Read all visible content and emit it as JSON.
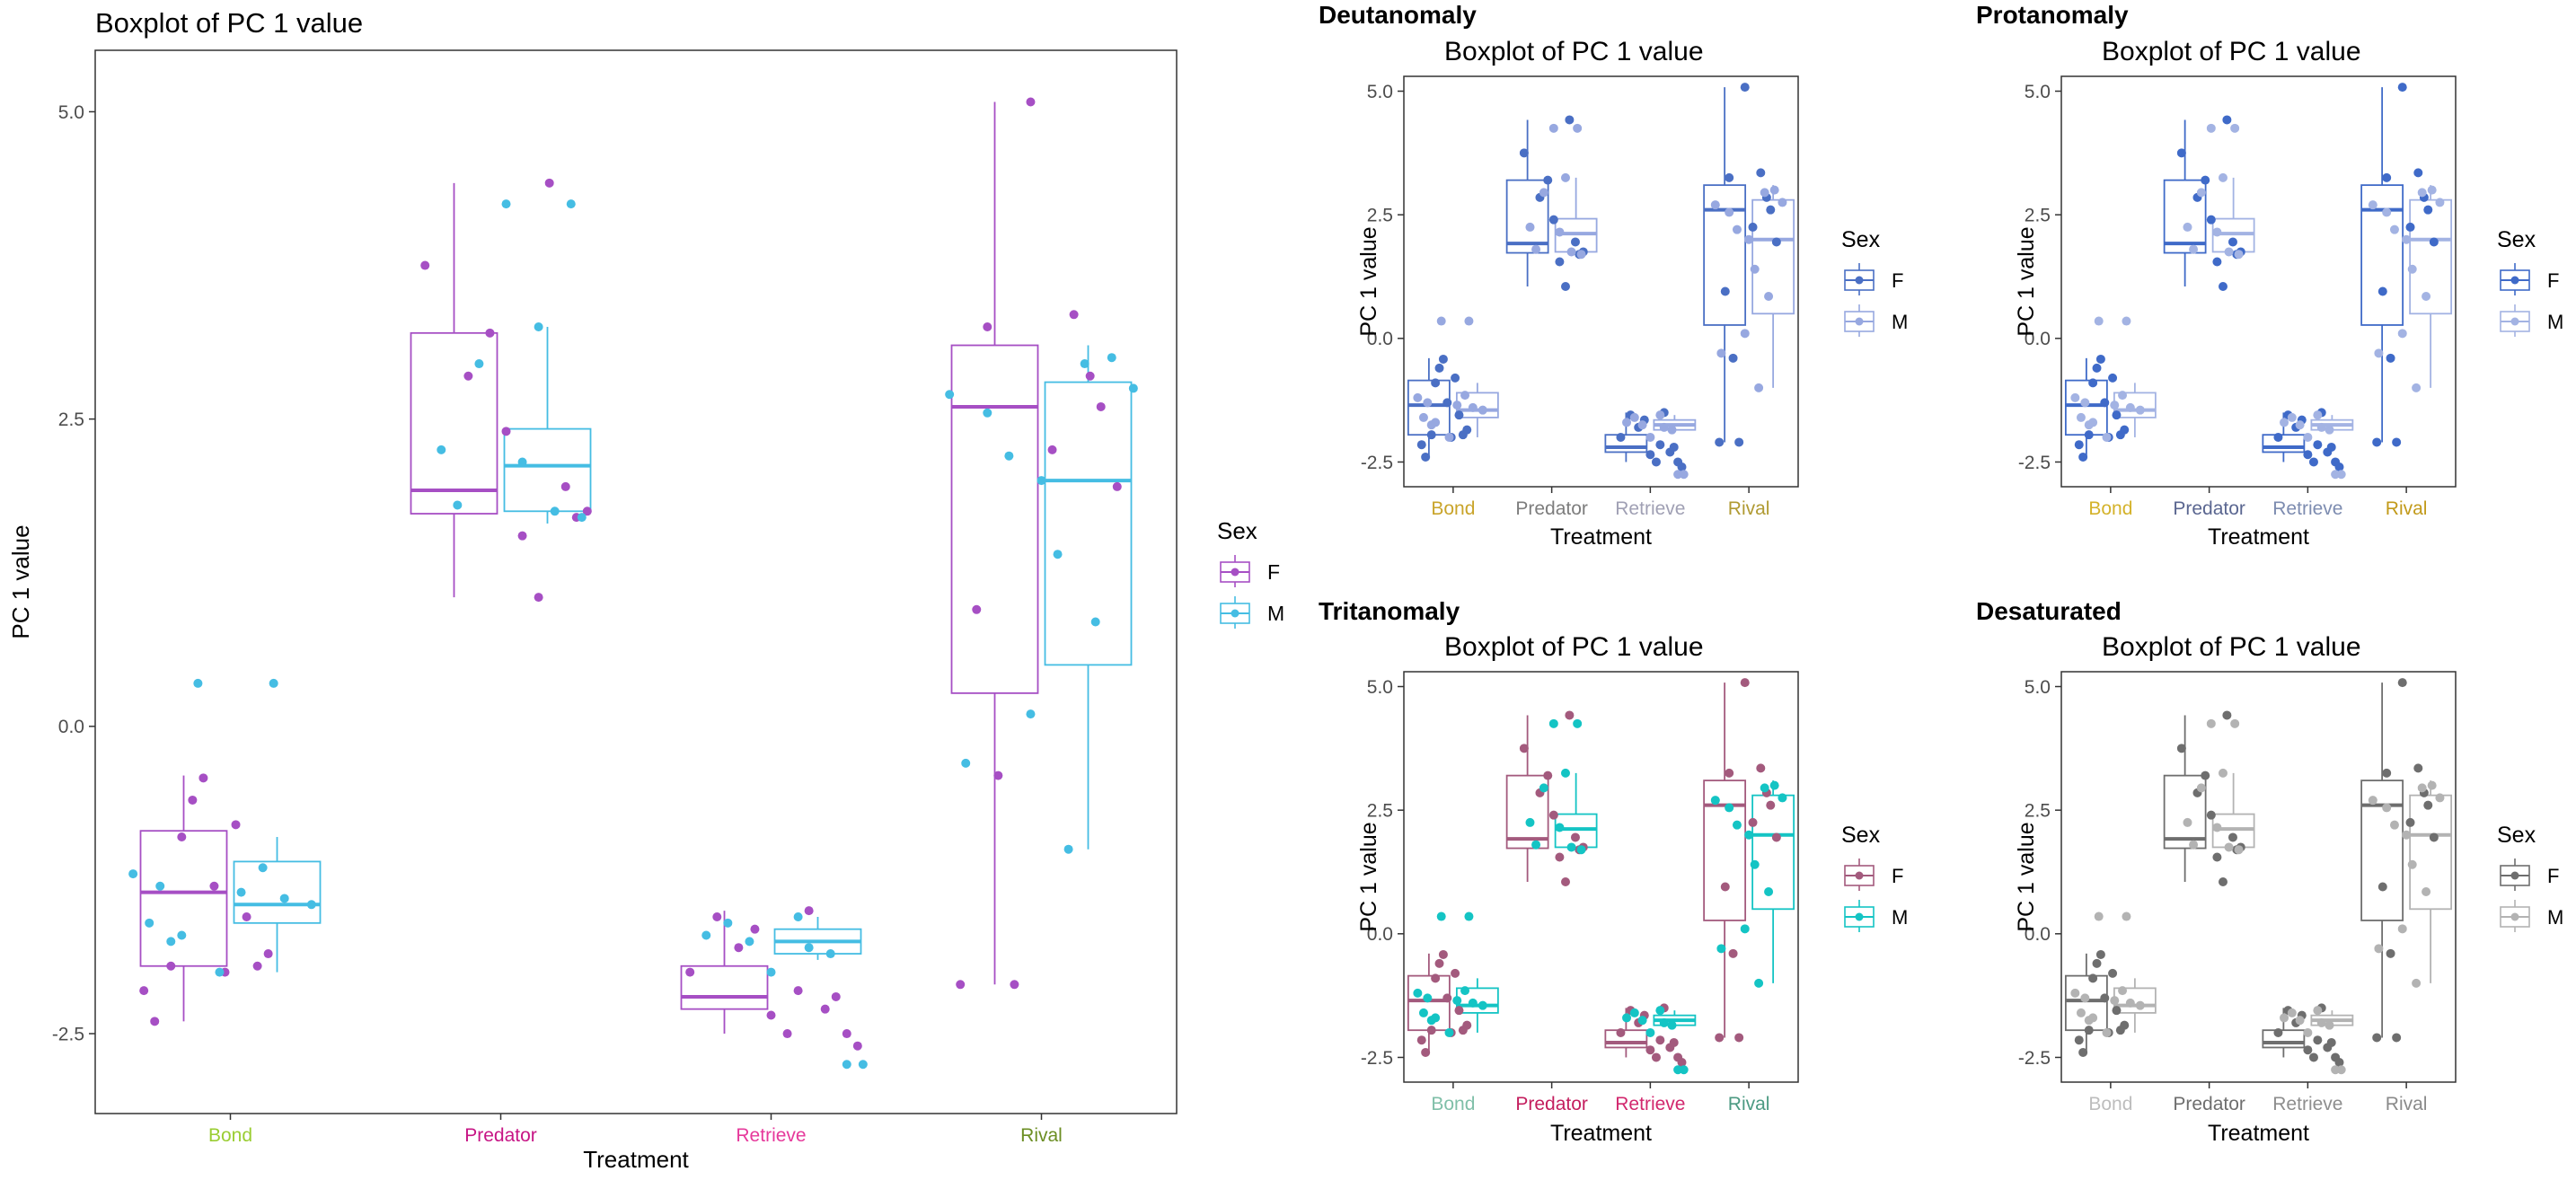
{
  "chart_data": [
    {
      "id": "main",
      "type": "boxplot",
      "panel_label": "",
      "title": "Boxplot of PC 1 value",
      "xlabel": "Treatment",
      "ylabel": "PC 1 value",
      "ylim": [
        -3.15,
        5.5
      ],
      "yticks": [
        -2.5,
        0.0,
        2.5,
        5.0
      ],
      "ytick_labels": [
        "-2.5",
        "0.0",
        "2.5",
        "5.0"
      ],
      "categories": [
        "Bond",
        "Predator",
        "Retrieve",
        "Rival"
      ],
      "category_colors": [
        "#9acd32",
        "#c71585",
        "#e6399b",
        "#6b8e23"
      ],
      "legend": {
        "title": "Sex",
        "placement": "right",
        "labels": [
          "F",
          "M"
        ]
      },
      "series": [
        {
          "name": "F",
          "color": "#a64fc4",
          "points_color": "#a64fc4"
        },
        {
          "name": "M",
          "color": "#45bde3",
          "points_color": "#45bde3"
        }
      ]
    },
    {
      "id": "deutan",
      "type": "boxplot",
      "panel_label": "Deutanomaly",
      "title": "Boxplot of PC 1 value",
      "xlabel": "Treatment",
      "ylabel": "PC 1 value",
      "ylim": [
        -3.0,
        5.3
      ],
      "yticks": [
        -2.5,
        0.0,
        2.5,
        5.0
      ],
      "ytick_labels": [
        "-2.5",
        "0.0",
        "2.5",
        "5.0"
      ],
      "categories": [
        "Bond",
        "Predator",
        "Retrieve",
        "Rival"
      ],
      "category_colors": [
        "#c9a42a",
        "#7d7d7d",
        "#a0a0b4",
        "#b09a32"
      ],
      "legend": {
        "title": "Sex",
        "placement": "right",
        "labels": [
          "F",
          "M"
        ]
      },
      "series": [
        {
          "name": "F",
          "color": "#4a6fc4",
          "points_color": "#4a6fc4"
        },
        {
          "name": "M",
          "color": "#97a8e0",
          "points_color": "#97a8e0"
        }
      ]
    },
    {
      "id": "protan",
      "type": "boxplot",
      "panel_label": "Protanomaly",
      "title": "Boxplot of PC 1 value",
      "xlabel": "Treatment",
      "ylabel": "PC 1 value",
      "ylim": [
        -3.0,
        5.3
      ],
      "yticks": [
        -2.5,
        0.0,
        2.5,
        5.0
      ],
      "ytick_labels": [
        "-2.5",
        "0.0",
        "2.5",
        "5.0"
      ],
      "categories": [
        "Bond",
        "Predator",
        "Retrieve",
        "Rival"
      ],
      "category_colors": [
        "#d4b22a",
        "#5a6690",
        "#7d8cb0",
        "#c29a1a"
      ],
      "legend": {
        "title": "Sex",
        "placement": "right",
        "labels": [
          "F",
          "M"
        ]
      },
      "series": [
        {
          "name": "F",
          "color": "#3f6ac8",
          "points_color": "#3f6ac8"
        },
        {
          "name": "M",
          "color": "#a3b3e3",
          "points_color": "#a3b3e3"
        }
      ]
    },
    {
      "id": "tritan",
      "type": "boxplot",
      "panel_label": "Tritanomaly",
      "title": "Boxplot of PC 1 value",
      "xlabel": "Treatment",
      "ylabel": "PC 1 value",
      "ylim": [
        -3.0,
        5.3
      ],
      "yticks": [
        -2.5,
        0.0,
        2.5,
        5.0
      ],
      "ytick_labels": [
        "-2.5",
        "0.0",
        "2.5",
        "5.0"
      ],
      "categories": [
        "Bond",
        "Predator",
        "Retrieve",
        "Rival"
      ],
      "category_colors": [
        "#7fbfa8",
        "#c41e5e",
        "#d2286e",
        "#4c9a82"
      ],
      "legend": {
        "title": "Sex",
        "placement": "right",
        "labels": [
          "F",
          "M"
        ]
      },
      "series": [
        {
          "name": "F",
          "color": "#a35a7d",
          "points_color": "#a35a7d"
        },
        {
          "name": "M",
          "color": "#14c4c4",
          "points_color": "#14c4c4"
        }
      ]
    },
    {
      "id": "desat",
      "type": "boxplot",
      "panel_label": "Desaturated",
      "title": "Boxplot of PC 1 value",
      "xlabel": "Treatment",
      "ylabel": "PC 1 value",
      "ylim": [
        -3.0,
        5.3
      ],
      "yticks": [
        -2.5,
        0.0,
        2.5,
        5.0
      ],
      "ytick_labels": [
        "-2.5",
        "0.0",
        "2.5",
        "5.0"
      ],
      "categories": [
        "Bond",
        "Predator",
        "Retrieve",
        "Rival"
      ],
      "category_colors": [
        "#bdbdbd",
        "#6e6e6e",
        "#8e8e8e",
        "#8a8a8a"
      ],
      "legend": {
        "title": "Sex",
        "placement": "right",
        "labels": [
          "F",
          "M"
        ]
      },
      "series": [
        {
          "name": "F",
          "color": "#6e6e6e",
          "points_color": "#6e6e6e"
        },
        {
          "name": "M",
          "color": "#b3b3b3",
          "points_color": "#b3b3b3"
        }
      ]
    }
  ],
  "box_stats": {
    "Bond": {
      "F": {
        "min": -2.4,
        "q1": -1.95,
        "median": -1.35,
        "q3": -0.85,
        "max": -0.4
      },
      "M": {
        "min": -2.0,
        "q1": -1.6,
        "median": -1.45,
        "q3": -1.1,
        "max": -0.9
      }
    },
    "Predator": {
      "F": {
        "min": 1.05,
        "q1": 1.73,
        "median": 1.92,
        "q3": 3.2,
        "max": 4.42
      },
      "M": {
        "min": 1.65,
        "q1": 1.75,
        "median": 2.12,
        "q3": 2.42,
        "max": 3.25
      }
    },
    "Retrieve": {
      "F": {
        "min": -2.5,
        "q1": -2.3,
        "median": -2.2,
        "q3": -1.95,
        "max": -1.5
      },
      "M": {
        "min": -1.9,
        "q1": -1.85,
        "median": -1.75,
        "q3": -1.65,
        "max": -1.55
      }
    },
    "Rival": {
      "F": {
        "min": -2.1,
        "q1": 0.27,
        "median": 2.6,
        "q3": 3.1,
        "max": 5.08
      },
      "M": {
        "min": -1.0,
        "q1": 0.5,
        "median": 2.0,
        "q3": 2.8,
        "max": 3.1
      }
    }
  },
  "points": {
    "Bond": {
      "F": [
        [
          -0.32,
          -2.15
        ],
        [
          -0.28,
          -2.4
        ],
        [
          -0.22,
          -1.95
        ],
        [
          -0.18,
          -0.9
        ],
        [
          -0.14,
          -0.6
        ],
        [
          -0.1,
          -0.42
        ],
        [
          -0.06,
          -1.3
        ],
        [
          -0.02,
          -2.0
        ],
        [
          0.02,
          -0.8
        ],
        [
          0.06,
          -1.55
        ],
        [
          0.1,
          -1.95
        ],
        [
          0.14,
          -1.85
        ]
      ],
      "M": [
        [
          -0.36,
          -1.2
        ],
        [
          -0.3,
          -1.6
        ],
        [
          -0.26,
          -1.3
        ],
        [
          -0.22,
          -1.75
        ],
        [
          -0.18,
          -1.7
        ],
        [
          -0.12,
          0.35
        ],
        [
          -0.04,
          -2.0
        ],
        [
          0.04,
          -1.35
        ],
        [
          0.12,
          -1.15
        ],
        [
          0.16,
          0.35
        ],
        [
          0.2,
          -1.4
        ],
        [
          0.3,
          -1.45
        ]
      ]
    },
    "Predator": {
      "F": [
        [
          -0.28,
          3.75
        ],
        [
          -0.12,
          2.85
        ],
        [
          -0.04,
          3.2
        ],
        [
          0.02,
          2.4
        ],
        [
          0.08,
          1.55
        ],
        [
          0.14,
          1.05
        ],
        [
          0.18,
          4.42
        ],
        [
          0.24,
          1.95
        ],
        [
          0.28,
          1.7
        ],
        [
          0.32,
          1.75
        ]
      ],
      "M": [
        [
          -0.22,
          2.25
        ],
        [
          -0.16,
          1.8
        ],
        [
          -0.08,
          2.95
        ],
        [
          0.02,
          4.25
        ],
        [
          0.08,
          2.15
        ],
        [
          0.14,
          3.25
        ],
        [
          0.2,
          1.75
        ],
        [
          0.26,
          4.25
        ],
        [
          0.3,
          1.7
        ]
      ]
    },
    "Retrieve": {
      "F": [
        [
          -0.3,
          -2.0
        ],
        [
          -0.2,
          -1.55
        ],
        [
          -0.12,
          -1.8
        ],
        [
          -0.06,
          -1.65
        ],
        [
          0.0,
          -2.35
        ],
        [
          0.06,
          -2.5
        ],
        [
          0.1,
          -2.15
        ],
        [
          0.14,
          -1.5
        ],
        [
          0.2,
          -2.3
        ],
        [
          0.24,
          -2.2
        ],
        [
          0.28,
          -2.5
        ],
        [
          0.32,
          -2.6
        ]
      ],
      "M": [
        [
          -0.24,
          -1.7
        ],
        [
          -0.16,
          -1.6
        ],
        [
          -0.08,
          -1.75
        ],
        [
          0.0,
          -2.0
        ],
        [
          0.1,
          -1.55
        ],
        [
          0.14,
          -1.8
        ],
        [
          0.22,
          -1.85
        ],
        [
          0.28,
          -2.75
        ],
        [
          0.34,
          -2.75
        ]
      ]
    },
    "Rival": {
      "F": [
        [
          -0.3,
          -2.1
        ],
        [
          -0.24,
          0.95
        ],
        [
          -0.2,
          3.25
        ],
        [
          -0.16,
          -0.4
        ],
        [
          -0.1,
          -2.1
        ],
        [
          -0.04,
          5.08
        ],
        [
          0.04,
          2.25
        ],
        [
          0.12,
          3.35
        ],
        [
          0.18,
          2.85
        ],
        [
          0.22,
          2.6
        ],
        [
          0.28,
          1.95
        ]
      ],
      "M": [
        [
          -0.34,
          2.7
        ],
        [
          -0.28,
          -0.3
        ],
        [
          -0.2,
          2.55
        ],
        [
          -0.12,
          2.2
        ],
        [
          -0.04,
          0.1
        ],
        [
          0.0,
          2.0
        ],
        [
          0.06,
          1.4
        ],
        [
          0.1,
          -1.0
        ],
        [
          0.16,
          2.95
        ],
        [
          0.2,
          0.85
        ],
        [
          0.26,
          3.0
        ],
        [
          0.34,
          2.75
        ]
      ]
    }
  }
}
